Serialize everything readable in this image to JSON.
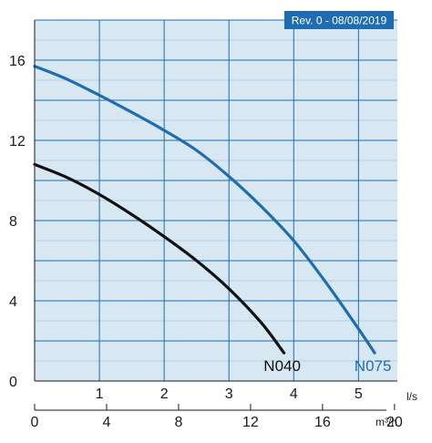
{
  "revision_label": "Rev. 0 - 08/08/2019",
  "colors": {
    "background": "#d7e8f2",
    "grid_major": "#1f6db0",
    "grid_minor": "#a9c9e2",
    "badge": "#1f6db0",
    "axis": "#1a1a1a"
  },
  "chart_data": {
    "type": "line",
    "title": "",
    "ylabel": "",
    "ylim": [
      0,
      18
    ],
    "yticks": [
      0,
      4,
      8,
      12,
      16
    ],
    "x_axes": [
      {
        "unit": "l/s",
        "range": [
          0,
          5.6
        ],
        "ticks": [
          1,
          2,
          3,
          4,
          5
        ]
      },
      {
        "unit": "m³/h",
        "range": [
          0,
          20.16
        ],
        "ticks": [
          0,
          4,
          8,
          12,
          16,
          20
        ]
      }
    ],
    "grid": true,
    "series": [
      {
        "name": "N040",
        "color": "#111111",
        "x_unit": "l/s",
        "points": [
          [
            0,
            10.8
          ],
          [
            0.5,
            10.15
          ],
          [
            1.0,
            9.3
          ],
          [
            1.5,
            8.3
          ],
          [
            2.0,
            7.2
          ],
          [
            2.5,
            6.0
          ],
          [
            3.0,
            4.6
          ],
          [
            3.5,
            2.9
          ],
          [
            3.85,
            1.4
          ]
        ]
      },
      {
        "name": "N075",
        "color": "#1f6db0",
        "x_unit": "l/s",
        "points": [
          [
            0,
            15.7
          ],
          [
            0.5,
            15.05
          ],
          [
            1.0,
            14.25
          ],
          [
            1.5,
            13.4
          ],
          [
            2.0,
            12.5
          ],
          [
            2.5,
            11.5
          ],
          [
            3.0,
            10.2
          ],
          [
            3.5,
            8.7
          ],
          [
            4.0,
            7.0
          ],
          [
            4.5,
            4.9
          ],
          [
            5.0,
            2.6
          ],
          [
            5.25,
            1.4
          ]
        ]
      }
    ]
  }
}
